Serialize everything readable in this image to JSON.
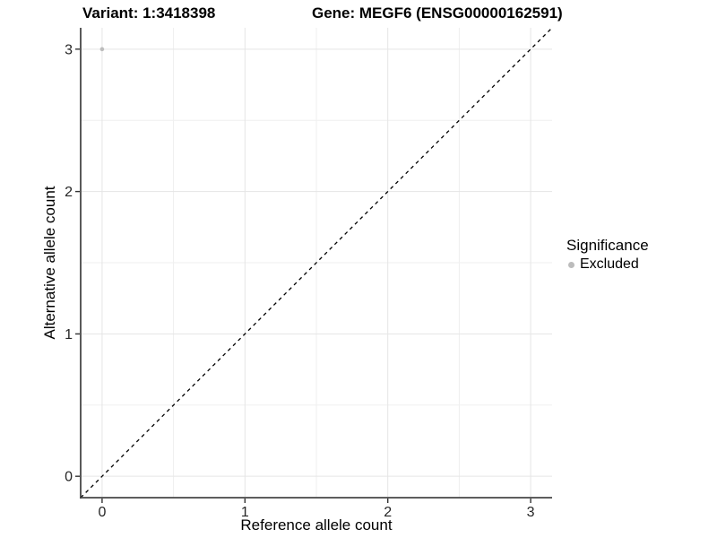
{
  "titles": {
    "variant": "Variant: 1:3418398",
    "gene": "Gene: MEGF6 (ENSG00000162591)"
  },
  "chart_data": {
    "type": "scatter",
    "title_left": "Variant: 1:3418398",
    "title_right": "Gene: MEGF6 (ENSG00000162591)",
    "xlabel": "Reference allele count",
    "ylabel": "Alternative allele count",
    "xlim": [
      -0.15,
      3.15
    ],
    "ylim": [
      -0.15,
      3.15
    ],
    "xticks": [
      0,
      1,
      2,
      3
    ],
    "yticks": [
      0,
      1,
      2,
      3
    ],
    "minor_ticks": [
      0.5,
      1.5,
      2.5
    ],
    "grid": true,
    "points": [
      {
        "x": 0,
        "y": 3,
        "series": "Excluded"
      }
    ],
    "reference_line": {
      "slope": 1,
      "intercept": 0,
      "style": "dashed",
      "color": "#000000"
    },
    "legend": {
      "title": "Significance",
      "position": "right",
      "items": [
        {
          "label": "Excluded",
          "color": "#bcbcbc"
        }
      ]
    },
    "colors": {
      "point": "#bcbcbc",
      "grid_major": "#e5e5e5",
      "grid_minor": "#efefef",
      "axis_line": "#474747",
      "tick_mark": "#333333",
      "tick_label": "#262626",
      "background": "#ffffff"
    }
  }
}
